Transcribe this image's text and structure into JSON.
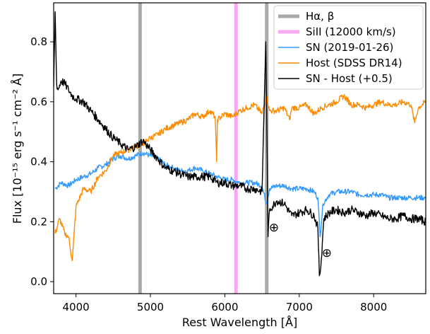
{
  "chart_data": {
    "type": "line",
    "xlabel": "Rest Wavelength [Å]",
    "ylabel": "Flux [10⁻¹⁵ erg s⁻¹ cm⁻² Å]",
    "xlim": [
      3700,
      8700
    ],
    "ylim": [
      -0.04,
      0.93
    ],
    "xticks": [
      4000,
      5000,
      6000,
      7000,
      8000
    ],
    "xtick_labels": [
      "4000",
      "5000",
      "6000",
      "7000",
      "8000"
    ],
    "yticks": [
      0.0,
      0.2,
      0.4,
      0.6,
      0.8
    ],
    "ytick_labels": [
      "0.0",
      "0.2",
      "0.4",
      "0.6",
      "0.8"
    ],
    "grid": false,
    "legend_position": "top-right",
    "vlines": [
      {
        "series": "Hα, β",
        "x": 4861,
        "color": "#aaaaaa"
      },
      {
        "series": "Hα, β",
        "x": 6563,
        "color": "#aaaaaa"
      },
      {
        "series": "SiII (12000 km/s)",
        "x": 6150,
        "color": "#f7a8f0"
      }
    ],
    "annotations": [
      {
        "symbol": "⊕",
        "x": 6660,
        "y": 0.18
      },
      {
        "symbol": "⊕",
        "x": 7370,
        "y": 0.095
      }
    ],
    "series": [
      {
        "name": "SN (2019-01-26)",
        "color": "#3399ff",
        "x": [
          3720,
          3800,
          3900,
          4000,
          4100,
          4200,
          4300,
          4400,
          4500,
          4600,
          4700,
          4800,
          4900,
          5000,
          5100,
          5200,
          5300,
          5400,
          5500,
          5600,
          5700,
          5800,
          5900,
          6000,
          6100,
          6200,
          6300,
          6400,
          6500,
          6560,
          6600,
          6700,
          6800,
          6900,
          7000,
          7100,
          7200,
          7250,
          7280,
          7320,
          7400,
          7500,
          7600,
          7700,
          7800,
          7900,
          8000,
          8100,
          8200,
          8300,
          8400,
          8500,
          8600,
          8700
        ],
        "y": [
          0.31,
          0.33,
          0.32,
          0.34,
          0.35,
          0.36,
          0.38,
          0.39,
          0.41,
          0.42,
          0.41,
          0.42,
          0.43,
          0.42,
          0.41,
          0.39,
          0.38,
          0.37,
          0.37,
          0.38,
          0.37,
          0.36,
          0.35,
          0.34,
          0.34,
          0.33,
          0.33,
          0.33,
          0.32,
          0.26,
          0.31,
          0.32,
          0.32,
          0.31,
          0.31,
          0.31,
          0.3,
          0.28,
          0.15,
          0.26,
          0.29,
          0.3,
          0.3,
          0.3,
          0.29,
          0.29,
          0.29,
          0.29,
          0.28,
          0.28,
          0.28,
          0.28,
          0.28,
          0.28
        ]
      },
      {
        "name": "Host (SDSS DR14)",
        "color": "#ff8c00",
        "x": [
          3720,
          3780,
          3850,
          3900,
          3950,
          4000,
          4100,
          4200,
          4300,
          4400,
          4500,
          4600,
          4700,
          4800,
          4900,
          5000,
          5100,
          5200,
          5300,
          5400,
          5500,
          5600,
          5700,
          5800,
          5870,
          5890,
          5900,
          6000,
          6100,
          6200,
          6300,
          6400,
          6500,
          6560,
          6600,
          6700,
          6800,
          6870,
          6900,
          7000,
          7100,
          7200,
          7300,
          7400,
          7500,
          7600,
          7700,
          7800,
          7900,
          8000,
          8100,
          8200,
          8300,
          8400,
          8500,
          8550,
          8600,
          8700
        ],
        "y": [
          0.16,
          0.21,
          0.16,
          0.15,
          0.07,
          0.25,
          0.31,
          0.3,
          0.35,
          0.37,
          0.42,
          0.43,
          0.44,
          0.45,
          0.46,
          0.48,
          0.49,
          0.51,
          0.52,
          0.53,
          0.54,
          0.56,
          0.55,
          0.57,
          0.55,
          0.4,
          0.54,
          0.56,
          0.55,
          0.57,
          0.58,
          0.59,
          0.56,
          0.62,
          0.57,
          0.57,
          0.58,
          0.54,
          0.58,
          0.58,
          0.59,
          0.56,
          0.58,
          0.59,
          0.6,
          0.62,
          0.59,
          0.59,
          0.58,
          0.59,
          0.6,
          0.59,
          0.59,
          0.6,
          0.59,
          0.53,
          0.58,
          0.6
        ]
      },
      {
        "name": "SN - Host (+0.5)",
        "color": "#000000",
        "x": [
          3700,
          3720,
          3740,
          3760,
          3800,
          3850,
          3900,
          3950,
          4000,
          4100,
          4200,
          4300,
          4400,
          4500,
          4600,
          4700,
          4800,
          4900,
          5000,
          5100,
          5200,
          5300,
          5400,
          5500,
          5600,
          5700,
          5800,
          5900,
          6000,
          6100,
          6200,
          6300,
          6400,
          6500,
          6550,
          6570,
          6580,
          6600,
          6700,
          6800,
          6900,
          7000,
          7100,
          7200,
          7250,
          7270,
          7290,
          7330,
          7400,
          7500,
          7600,
          7700,
          7800,
          7900,
          8000,
          8100,
          8200,
          8300,
          8400,
          8500,
          8600,
          8700
        ],
        "y": [
          0.65,
          0.9,
          0.66,
          0.64,
          0.67,
          0.66,
          0.64,
          0.62,
          0.61,
          0.6,
          0.57,
          0.54,
          0.51,
          0.48,
          0.46,
          0.44,
          0.45,
          0.47,
          0.44,
          0.41,
          0.38,
          0.37,
          0.36,
          0.35,
          0.35,
          0.35,
          0.35,
          0.33,
          0.33,
          0.32,
          0.32,
          0.31,
          0.31,
          0.3,
          0.8,
          0.4,
          0.15,
          0.24,
          0.27,
          0.26,
          0.22,
          0.23,
          0.24,
          0.22,
          0.18,
          0.02,
          0.05,
          0.21,
          0.23,
          0.24,
          0.23,
          0.24,
          0.23,
          0.22,
          0.23,
          0.22,
          0.21,
          0.21,
          0.22,
          0.21,
          0.21,
          0.2
        ]
      }
    ],
    "legend": [
      {
        "label": "Hα, β",
        "color": "#aaaaaa",
        "width": 5
      },
      {
        "label": "SiII (12000 km/s)",
        "color": "#f7a8f0",
        "width": 5
      },
      {
        "label": "SN (2019-01-26)",
        "color": "#3399ff",
        "width": 1.6
      },
      {
        "label": "Host (SDSS DR14)",
        "color": "#ff8c00",
        "width": 1.6
      },
      {
        "label": "SN - Host (+0.5)",
        "color": "#000000",
        "width": 1.6
      }
    ]
  }
}
